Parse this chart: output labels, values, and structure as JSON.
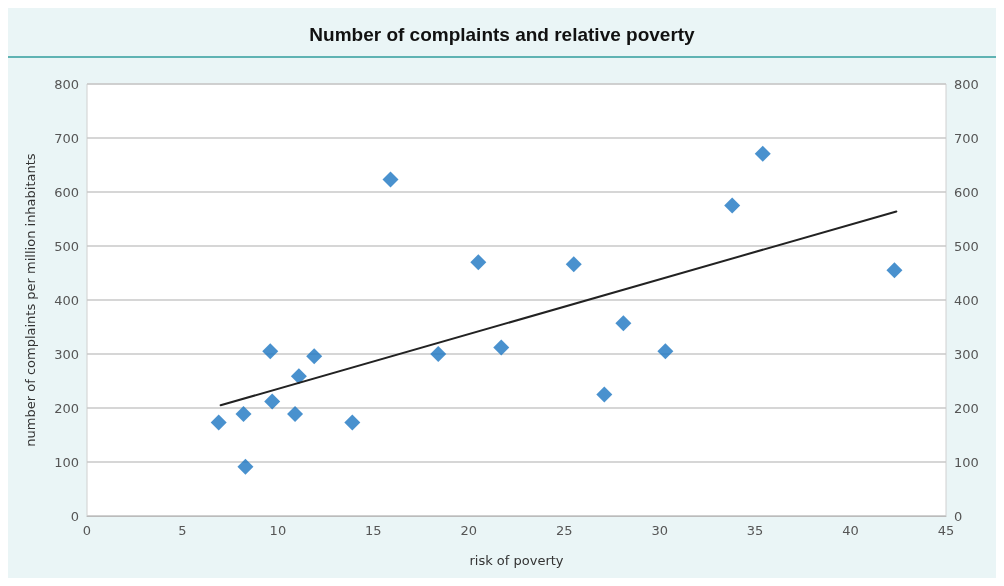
{
  "chart_data": {
    "type": "scatter",
    "title": "Number of complaints and relative poverty",
    "xlabel": "risk of poverty",
    "ylabel": "number of complaints per million inhabitants",
    "series": [
      {
        "color": "#1b75c2",
        "marker": "diamond",
        "x": [
          6.9,
          8.2,
          8.3,
          9.6,
          9.7,
          11.1,
          10.9,
          11.9,
          13.9,
          15.9,
          18.4,
          20.5,
          21.7,
          25.5,
          27.1,
          28.1,
          30.3,
          33.8,
          35.4,
          42.3
        ],
        "values": [
          173,
          189,
          91,
          305,
          212,
          259,
          189,
          296,
          173,
          623,
          300,
          470,
          312,
          466,
          225,
          357,
          305,
          575,
          671,
          455
        ]
      },
      {
        "type": "line",
        "color": "#222222",
        "marker": "none",
        "x": [
          7.0,
          42.4
        ],
        "values": [
          205,
          564
        ]
      }
    ],
    "xlim": [
      0,
      45
    ],
    "xticks": [
      0,
      5,
      10,
      15,
      20,
      25,
      30,
      35,
      40,
      45
    ],
    "ylim": [
      0,
      800
    ],
    "yticks": [
      0,
      100,
      200,
      300,
      400,
      500,
      600,
      700,
      800
    ],
    "y2lim": [
      0,
      800
    ],
    "y2ticks": [
      0,
      100,
      200,
      300,
      400,
      500,
      600,
      700,
      800
    ],
    "grid": "y"
  }
}
